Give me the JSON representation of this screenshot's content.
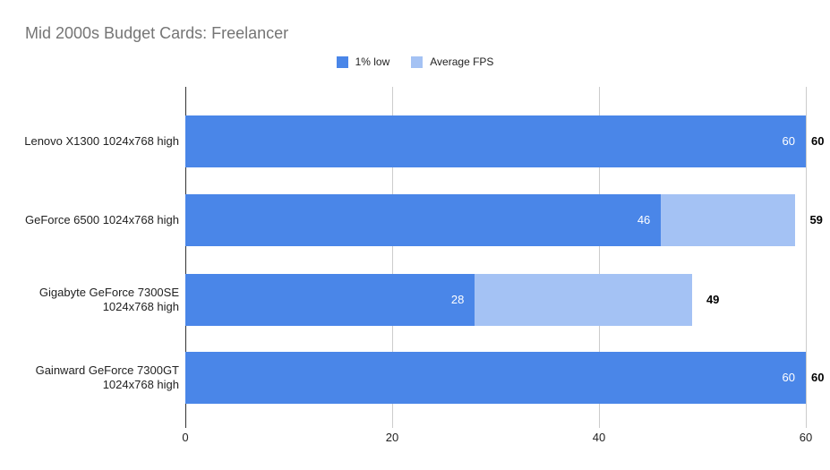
{
  "chart_data": {
    "type": "bar",
    "orientation": "horizontal",
    "title": "Mid 2000s Budget Cards: Freelancer",
    "categories": [
      "Lenovo X1300 1024x768 high",
      "GeForce 6500 1024x768 high",
      "Gigabyte GeForce 7300SE 1024x768 high",
      "Gainward GeForce 7300GT 1024x768 high"
    ],
    "category_lines": [
      [
        "Lenovo X1300 1024x768 high"
      ],
      [
        "GeForce 6500 1024x768 high"
      ],
      [
        "Gigabyte GeForce 7300SE",
        "1024x768 high"
      ],
      [
        "Gainward GeForce 7300GT",
        "1024x768 high"
      ]
    ],
    "series": [
      {
        "name": "1% low",
        "color": "#4a86e8",
        "values": [
          60,
          46,
          28,
          60
        ],
        "label_position": "inside-end",
        "label_color": "#ffffff"
      },
      {
        "name": "Average FPS",
        "color": "#a4c2f4",
        "values": [
          60,
          59,
          49,
          60
        ],
        "label_position": "outside-end",
        "label_color": "#000000"
      }
    ],
    "bar_style": "overlapped",
    "xlim": [
      0,
      60
    ],
    "xticks": [
      0,
      20,
      40,
      60
    ],
    "grid": true,
    "legend_position": "top"
  },
  "colors": {
    "background": "#ffffff",
    "title": "#757575",
    "axis_line": "#333333",
    "gridline": "#cccccc",
    "tick_label": "#222222",
    "category_label": "#222222",
    "annotation": "#000000"
  }
}
